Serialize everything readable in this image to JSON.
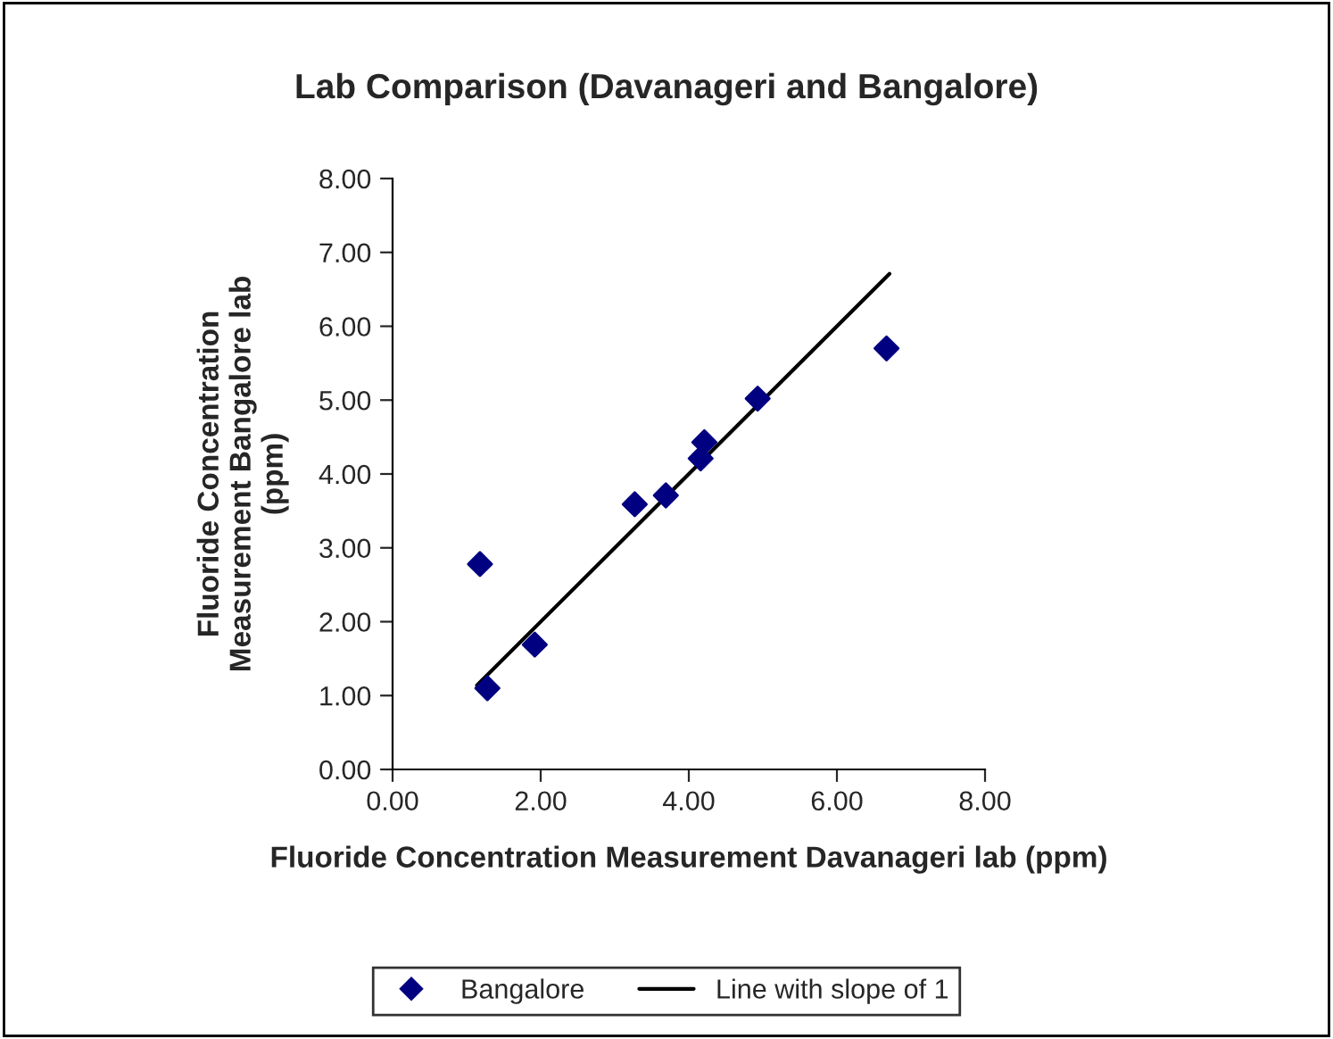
{
  "chart_data": {
    "type": "scatter",
    "title": "Lab Comparison (Davanageri and Bangalore)",
    "xlabel": "Fluoride Concentration Measurement Davanageri lab (ppm)",
    "ylabel": "Fluoride Concentration\nMeasurement Bangalore lab\n(ppm)",
    "series": [
      {
        "name": "Bangalore",
        "color": "#000080",
        "marker": "diamond",
        "x": [
          1.18,
          1.28,
          1.92,
          3.27,
          3.69,
          4.16,
          4.21,
          4.93,
          6.67
        ],
        "values": [
          2.78,
          1.1,
          1.69,
          3.59,
          3.71,
          4.21,
          4.43,
          5.02,
          5.7
        ]
      },
      {
        "name": "Line with slope of 1",
        "type": "line",
        "color": "#000000",
        "marker": "none",
        "line_style": "solid",
        "x": [
          1.14,
          1.92,
          3.27,
          4.16,
          4.93,
          6.71
        ],
        "values": [
          1.14,
          1.92,
          3.27,
          4.16,
          4.93,
          6.71
        ]
      }
    ],
    "xlim": [
      0,
      8
    ],
    "ylim": [
      0,
      8
    ],
    "xticks": [
      {
        "value": 0,
        "label": "0.00"
      },
      {
        "value": 2,
        "label": "2.00"
      },
      {
        "value": 4,
        "label": "4.00"
      },
      {
        "value": 6,
        "label": "6.00"
      },
      {
        "value": 8,
        "label": "8.00"
      }
    ],
    "yticks": [
      {
        "value": 0,
        "label": "0.00"
      },
      {
        "value": 1,
        "label": "1.00"
      },
      {
        "value": 2,
        "label": "2.00"
      },
      {
        "value": 3,
        "label": "3.00"
      },
      {
        "value": 4,
        "label": "4.00"
      },
      {
        "value": 5,
        "label": "5.00"
      },
      {
        "value": 6,
        "label": "6.00"
      },
      {
        "value": 7,
        "label": "7.00"
      },
      {
        "value": 8,
        "label": "8.00"
      }
    ],
    "grid": false,
    "legend": "bottom"
  }
}
